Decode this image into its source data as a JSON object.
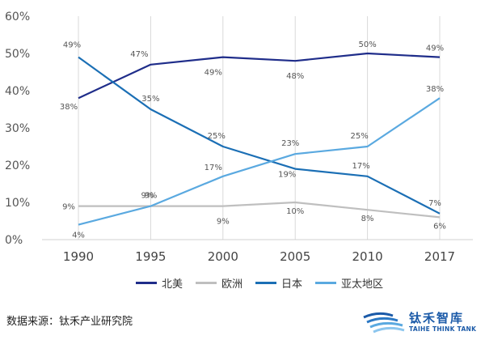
{
  "chart_data": {
    "type": "line",
    "categories": [
      "1990",
      "1995",
      "2000",
      "2005",
      "2010",
      "2017"
    ],
    "y_ticks": [
      "0%",
      "10%",
      "20%",
      "30%",
      "40%",
      "50%",
      "60%"
    ],
    "ylim": [
      0,
      60
    ],
    "grid": "vertical",
    "legend_position": "bottom",
    "series": [
      {
        "name": "北美",
        "color": "#1f2d8a",
        "values": [
          38,
          47,
          49,
          48,
          50,
          49
        ],
        "labels": [
          "38%",
          "47%",
          "49%",
          "48%",
          "50%",
          "49%"
        ]
      },
      {
        "name": "欧洲",
        "color": "#bfbfbf",
        "values": [
          9,
          9,
          9,
          10,
          8,
          6
        ],
        "labels": [
          "9%",
          "9%",
          "9%",
          "10%",
          "8%",
          "6%"
        ]
      },
      {
        "name": "日本",
        "color": "#1b6fb5",
        "values": [
          49,
          35,
          25,
          19,
          17,
          7
        ],
        "labels": [
          "49%",
          "35%",
          "25%",
          "19%",
          "17%",
          "7%"
        ]
      },
      {
        "name": "亚太地区",
        "color": "#5aa9e0",
        "values": [
          4,
          9,
          17,
          23,
          25,
          38
        ],
        "labels": [
          "4%",
          "9%",
          "17%",
          "23%",
          "25%",
          "38%"
        ]
      }
    ]
  },
  "source_text": "数据来源：钛禾产业研究院",
  "brand": {
    "name": "钛禾智库",
    "subtitle": "TAIHE THINK TANK"
  }
}
